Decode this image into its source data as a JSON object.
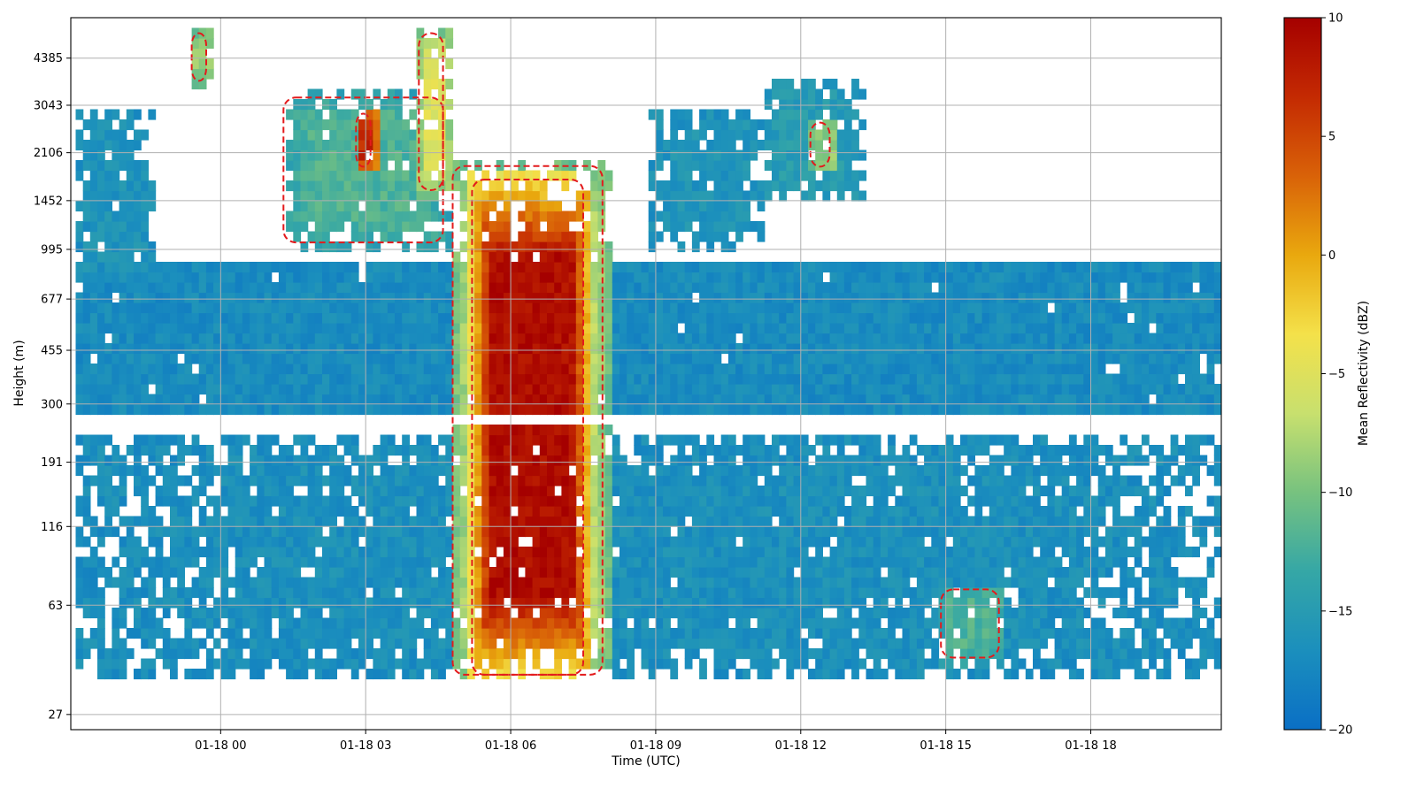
{
  "chart_data": {
    "type": "heatmap",
    "title": "",
    "xlabel": "Time (UTC)",
    "ylabel": "Height (m)",
    "x_tick_labels": [
      "01-18 00",
      "01-18 03",
      "01-18 06",
      "01-18 09",
      "01-18 12",
      "01-18 15",
      "01-18 18"
    ],
    "x_tick_hours": [
      0,
      3,
      6,
      9,
      12,
      15,
      18
    ],
    "x_range_hours": [
      -3.1,
      20.7
    ],
    "y_tick_labels": [
      "27",
      "63",
      "116",
      "191",
      "300",
      "455",
      "677",
      "995",
      "1452",
      "2106",
      "3043",
      "4385"
    ],
    "y_tick_values": [
      27,
      63,
      116,
      191,
      300,
      455,
      677,
      995,
      1452,
      2106,
      3043,
      4385
    ],
    "y_scale": "log",
    "y_range": [
      24,
      6000
    ],
    "grid": true,
    "colorbar": {
      "label": "Mean Reflectivity (dBZ)",
      "min": -20,
      "max": 10,
      "tick_labels": [
        "10",
        "5",
        "0",
        "−5",
        "−10",
        "−15",
        "−20"
      ],
      "tick_values": [
        10,
        5,
        0,
        -5,
        -10,
        -15,
        -20
      ],
      "colormap_stops": [
        "#0a6fc5",
        "#1b8fbd",
        "#35a7a6",
        "#77c27f",
        "#c8e06e",
        "#f4e14a",
        "#e9a80e",
        "#d96208",
        "#c42a02",
        "#a50000"
      ]
    },
    "contour": {
      "color": "#e31a1c",
      "style": "dashed"
    },
    "base_level_dbz": -17,
    "data_gap_height_m": [
      255,
      275
    ],
    "regions": [
      {
        "name": "low-level-stratus",
        "t0": -3.0,
        "t1": 20.6,
        "h0": 255,
        "h1": 870,
        "dbz": -17
      },
      {
        "name": "near-surface-echo",
        "t0": -3.0,
        "t1": 20.6,
        "h0": 35,
        "h1": 240,
        "dbz": -16.5
      },
      {
        "name": "surface-enhancement",
        "t0": 14.8,
        "t1": 16.2,
        "h0": 40,
        "h1": 75,
        "dbz": -12
      },
      {
        "name": "heavy-precip-column",
        "t0": 5.1,
        "t1": 7.6,
        "h0": 35,
        "h1": 1800,
        "dbz": 9
      },
      {
        "name": "precip-fall-streak",
        "t0": 4.7,
        "t1": 8.0,
        "h0": 35,
        "h1": 2000,
        "dbz": -5
      },
      {
        "name": "upper-cell-03utc",
        "t0": 1.2,
        "t1": 4.7,
        "h0": 1000,
        "h1": 3400,
        "dbz": -12
      },
      {
        "name": "upper-core-03utc",
        "t0": 2.7,
        "t1": 3.2,
        "h0": 1800,
        "h1": 3000,
        "dbz": 7
      },
      {
        "name": "upper-streak-04utc",
        "t0": 4.0,
        "t1": 4.7,
        "h0": 1500,
        "h1": 5600,
        "dbz": -5
      },
      {
        "name": "upper-cell-09utc",
        "t0": 8.8,
        "t1": 11.2,
        "h0": 1000,
        "h1": 3000,
        "dbz": -16
      },
      {
        "name": "upper-cell-12utc",
        "t0": 11.1,
        "t1": 13.3,
        "h0": 1400,
        "h1": 3700,
        "dbz": -15
      },
      {
        "name": "upper-core-12utc",
        "t0": 12.1,
        "t1": 12.7,
        "h0": 1800,
        "h1": 2800,
        "dbz": -9
      },
      {
        "name": "upper-cell-23utc",
        "t0": -0.7,
        "t1": -0.2,
        "h0": 3500,
        "h1": 5600,
        "dbz": -9
      },
      {
        "name": "left-column",
        "t0": -3.0,
        "t1": -1.5,
        "h0": 800,
        "h1": 2900,
        "dbz": -16
      }
    ]
  }
}
